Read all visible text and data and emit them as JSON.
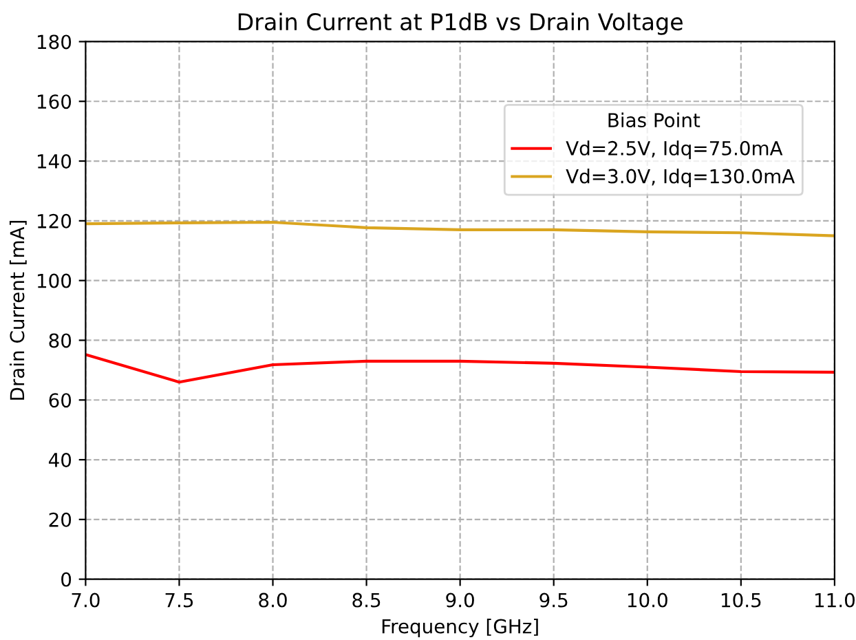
{
  "chart_data": {
    "type": "line",
    "title": "Drain Current at P1dB vs Drain Voltage",
    "xlabel": "Frequency [GHz]",
    "ylabel": "Drain Current [mA]",
    "legend_title": "Bias Point",
    "x": [
      7.0,
      7.5,
      8.0,
      8.5,
      9.0,
      9.5,
      10.0,
      10.5,
      11.0
    ],
    "series": [
      {
        "name": "Vd=2.5V, Idq=75.0mA",
        "color": "#ff0000",
        "values": [
          75.2,
          66,
          71.8,
          73,
          73,
          72.3,
          71,
          69.5,
          69.3
        ]
      },
      {
        "name": "Vd=3.0V, Idq=130.0mA",
        "color": "#daa520",
        "values": [
          119,
          119.3,
          119.5,
          117.7,
          117,
          117,
          116.3,
          116,
          115
        ]
      }
    ],
    "xlim": [
      7.0,
      11.0
    ],
    "xticks": [
      {
        "value": 7.0,
        "label": "7.0"
      },
      {
        "value": 7.5,
        "label": "7.5"
      },
      {
        "value": 8.0,
        "label": "8.0"
      },
      {
        "value": 8.5,
        "label": "8.5"
      },
      {
        "value": 9.0,
        "label": "9.0"
      },
      {
        "value": 9.5,
        "label": "9.5"
      },
      {
        "value": 10.0,
        "label": "10.0"
      },
      {
        "value": 10.5,
        "label": "10.5"
      },
      {
        "value": 11.0,
        "label": "11.0"
      }
    ],
    "ylim": [
      0,
      180
    ],
    "yticks": [
      0,
      20,
      40,
      60,
      80,
      100,
      120,
      140,
      160,
      180
    ],
    "grid": true,
    "legend": "top right",
    "line_style": "solid",
    "marker": "none"
  }
}
